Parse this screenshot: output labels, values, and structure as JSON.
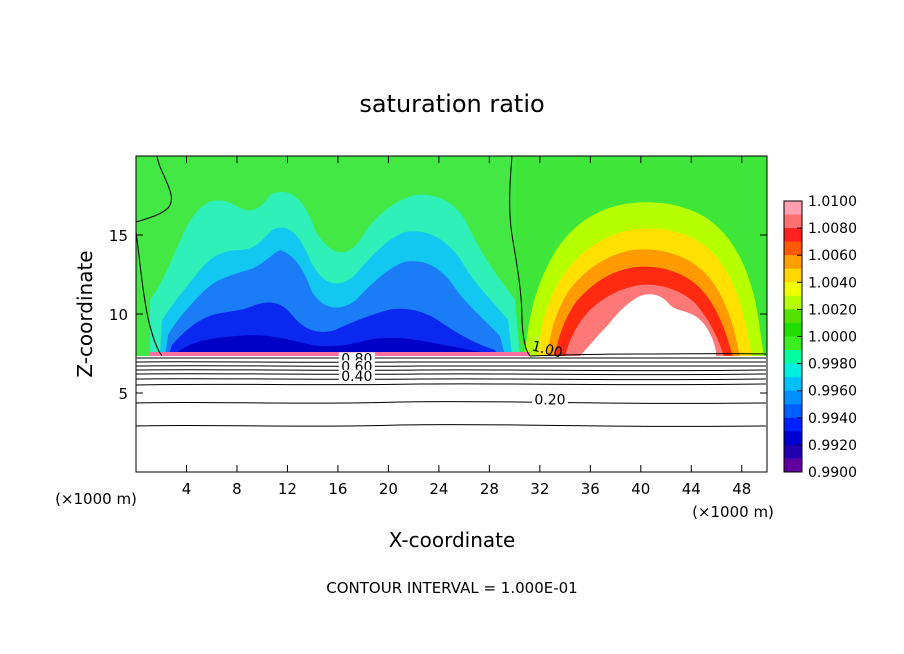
{
  "chart_data": {
    "type": "heatmap",
    "title": "saturation ratio",
    "xlabel": "X-coordinate",
    "ylabel": "Z-coordinate",
    "x_unit_left": "(×1000 m)",
    "x_unit_right": "(×1000 m)",
    "footer": "CONTOUR INTERVAL = 1.000E-01",
    "xlim": [
      0,
      50
    ],
    "ylim": [
      0,
      20
    ],
    "x_ticks": [
      4,
      8,
      12,
      16,
      20,
      24,
      28,
      32,
      36,
      40,
      44,
      48
    ],
    "y_ticks": [
      5,
      10,
      15
    ],
    "colorbar": {
      "levels": [
        "1.0100",
        "1.0080",
        "1.0060",
        "1.0040",
        "1.0020",
        "1.0000",
        "0.9980",
        "0.9960",
        "0.9940",
        "0.9920",
        "0.9900"
      ],
      "colors": [
        "#ff9fb0",
        "#ff7070",
        "#ff2020",
        "#ff5a00",
        "#ffa000",
        "#ffd800",
        "#eeff00",
        "#b6ff00",
        "#55e000",
        "#22dd00",
        "#3aee20",
        "#00ffa0",
        "#00f0e0",
        "#00c0ff",
        "#0090ff",
        "#0060ff",
        "#0020ff",
        "#0000d0",
        "#2000b0",
        "#6000a0"
      ]
    },
    "contour_labels": [
      {
        "text": "1.00",
        "x": 32.5,
        "y": 7.6
      },
      {
        "text": "0.80",
        "x": 17.5,
        "y": 7.0
      },
      {
        "text": "0.60",
        "x": 17.5,
        "y": 6.5
      },
      {
        "text": "0.40",
        "x": 17.5,
        "y": 5.9
      },
      {
        "text": "0.20",
        "x": 32.8,
        "y": 4.4
      }
    ]
  }
}
